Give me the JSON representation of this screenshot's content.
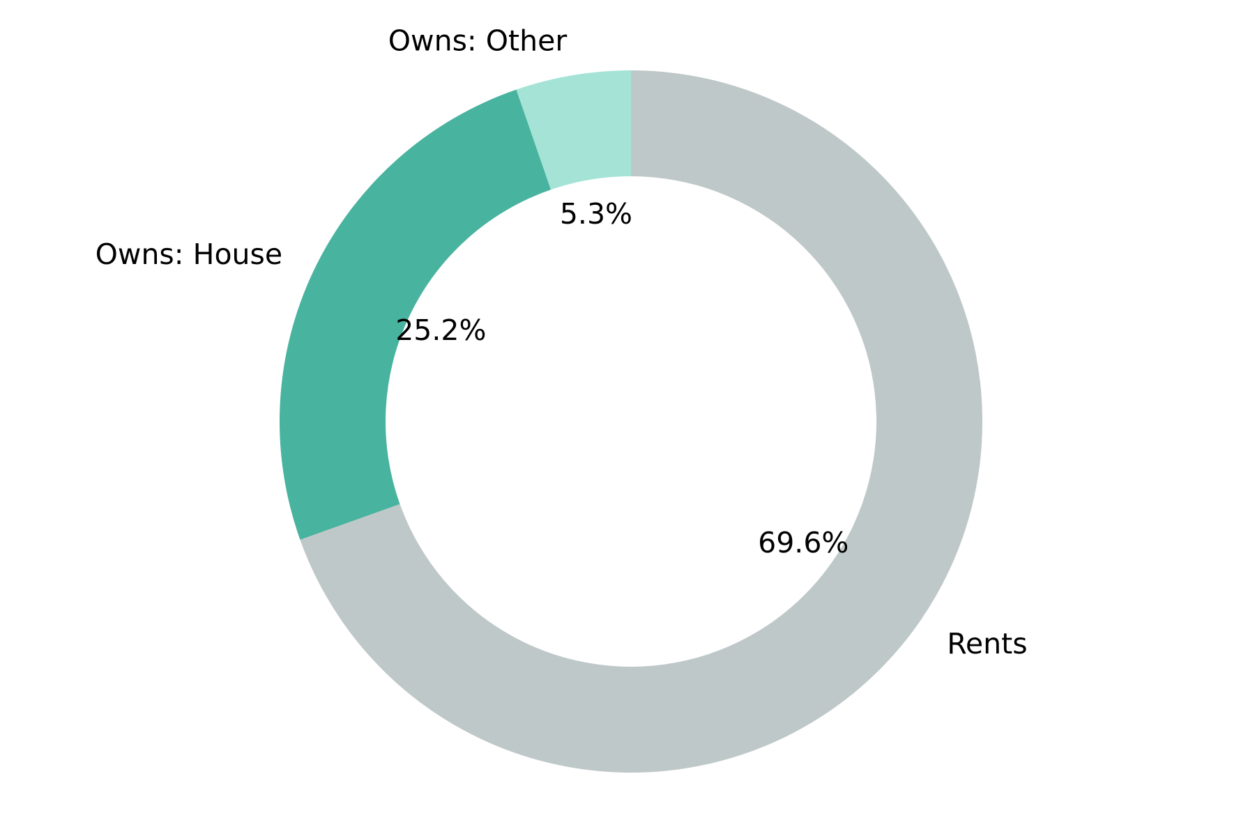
{
  "chart_data": {
    "type": "pie",
    "style": "donut",
    "start_angle_deg": 90,
    "direction": "counterclockwise",
    "title": "",
    "legend": "none",
    "slices": [
      {
        "label": "Owns: Other",
        "value": 5.3,
        "value_label": "5.3%",
        "color": "#a5e3d7"
      },
      {
        "label": "Owns: House",
        "value": 25.2,
        "value_label": "25.2%",
        "color": "#48b39e"
      },
      {
        "label": "Rents",
        "value": 69.6,
        "value_label": "69.6%",
        "color": "#bfc8c8"
      }
    ]
  }
}
